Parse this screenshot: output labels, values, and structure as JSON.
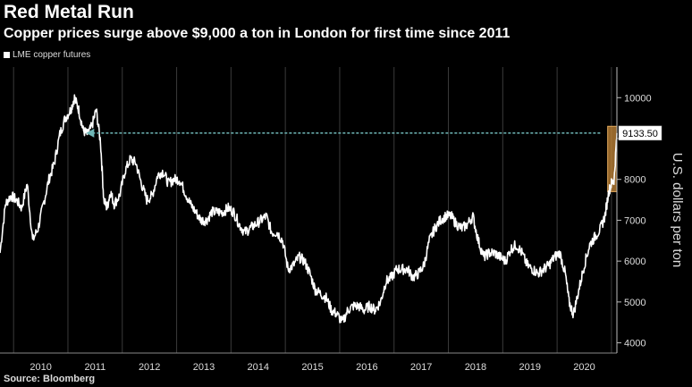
{
  "header": {
    "title": "Red Metal Run",
    "subtitle": "Copper prices surge above $9,000 a ton in London for first time since 2011",
    "legend_label": "LME copper futures",
    "source": "Source: Bloomberg"
  },
  "colors": {
    "background": "#000000",
    "line": "#ffffff",
    "highlight": "#c8893a",
    "arrow": "#6fb7b7",
    "grid": "#3a3a3a"
  },
  "chart_data": {
    "type": "line",
    "title": "Red Metal Run",
    "subtitle": "Copper prices surge above $9,000 a ton in London for first time since 2011",
    "xlabel": "",
    "ylabel": "U.S. dollars per ton",
    "ylim": [
      3750,
      10750
    ],
    "xlim": [
      2009.75,
      2021.1
    ],
    "y_ticks": [
      4000,
      5000,
      6000,
      7000,
      8000,
      9000,
      10000
    ],
    "y_tick_labels": [
      "4000",
      "5000",
      "6000",
      "7000",
      "8000",
      "",
      "10000"
    ],
    "x_tick_labels": [
      "2010",
      "2011",
      "2012",
      "2013",
      "2014",
      "2015",
      "2016",
      "2017",
      "2018",
      "2019",
      "2020"
    ],
    "grid": "vertical",
    "series": [
      {
        "name": "LME copper futures",
        "x": [
          2009.75,
          2009.85,
          2009.95,
          2010.05,
          2010.15,
          2010.25,
          2010.35,
          2010.45,
          2010.55,
          2010.65,
          2010.75,
          2010.85,
          2010.95,
          2011.05,
          2011.12,
          2011.2,
          2011.28,
          2011.36,
          2011.44,
          2011.52,
          2011.6,
          2011.66,
          2011.72,
          2011.78,
          2011.85,
          2011.95,
          2012.05,
          2012.15,
          2012.25,
          2012.35,
          2012.45,
          2012.55,
          2012.65,
          2012.75,
          2012.85,
          2012.95,
          2013.05,
          2013.15,
          2013.25,
          2013.35,
          2013.45,
          2013.55,
          2013.65,
          2013.75,
          2013.85,
          2013.95,
          2014.05,
          2014.15,
          2014.25,
          2014.35,
          2014.45,
          2014.55,
          2014.65,
          2014.75,
          2014.85,
          2014.95,
          2015.05,
          2015.15,
          2015.25,
          2015.35,
          2015.45,
          2015.55,
          2015.65,
          2015.75,
          2015.85,
          2015.95,
          2016.05,
          2016.15,
          2016.25,
          2016.35,
          2016.45,
          2016.55,
          2016.65,
          2016.75,
          2016.85,
          2016.95,
          2017.05,
          2017.15,
          2017.25,
          2017.35,
          2017.45,
          2017.55,
          2017.65,
          2017.75,
          2017.85,
          2017.95,
          2018.05,
          2018.15,
          2018.25,
          2018.35,
          2018.45,
          2018.55,
          2018.65,
          2018.75,
          2018.85,
          2018.95,
          2019.05,
          2019.15,
          2019.25,
          2019.35,
          2019.45,
          2019.55,
          2019.65,
          2019.75,
          2019.85,
          2019.95,
          2020.05,
          2020.15,
          2020.22,
          2020.3,
          2020.4,
          2020.5,
          2020.6,
          2020.7,
          2020.8,
          2020.88,
          2020.95,
          2021.0,
          2021.05,
          2021.1
        ],
        "values": [
          6200,
          7400,
          7600,
          7500,
          7300,
          7900,
          6500,
          6800,
          7400,
          8000,
          8400,
          9100,
          9500,
          9700,
          10000,
          9700,
          9200,
          9100,
          9300,
          9700,
          8900,
          7500,
          7300,
          7700,
          7400,
          7600,
          8200,
          8500,
          8400,
          7900,
          7500,
          7600,
          8100,
          8200,
          7900,
          8000,
          8000,
          7700,
          7400,
          7200,
          7000,
          7000,
          7200,
          7200,
          7200,
          7300,
          7200,
          6900,
          6700,
          6800,
          6900,
          7000,
          7100,
          6700,
          6700,
          6500,
          5800,
          5900,
          6100,
          6000,
          5700,
          5300,
          5200,
          5100,
          4800,
          4700,
          4500,
          4800,
          4900,
          4900,
          4800,
          4900,
          4800,
          5000,
          5500,
          5600,
          5800,
          5800,
          5800,
          5600,
          5700,
          5900,
          6500,
          6800,
          7000,
          7100,
          7100,
          6900,
          6800,
          6900,
          7100,
          6500,
          6100,
          6200,
          6200,
          6100,
          6000,
          6300,
          6400,
          6200,
          5900,
          5800,
          5700,
          5800,
          5900,
          6100,
          6200,
          5700,
          5000,
          4700,
          5300,
          5900,
          6400,
          6600,
          6800,
          7100,
          7700,
          7900,
          8000,
          9133.5
        ]
      }
    ],
    "annotations": [
      {
        "type": "callout_label",
        "text": "9133.50",
        "value": 9133.5
      },
      {
        "type": "arrow",
        "direction": "left",
        "value": 9133.5
      },
      {
        "type": "highlight_box",
        "x_range": [
          2020.93,
          2021.1
        ],
        "y_range": [
          7700,
          9300
        ]
      }
    ]
  }
}
